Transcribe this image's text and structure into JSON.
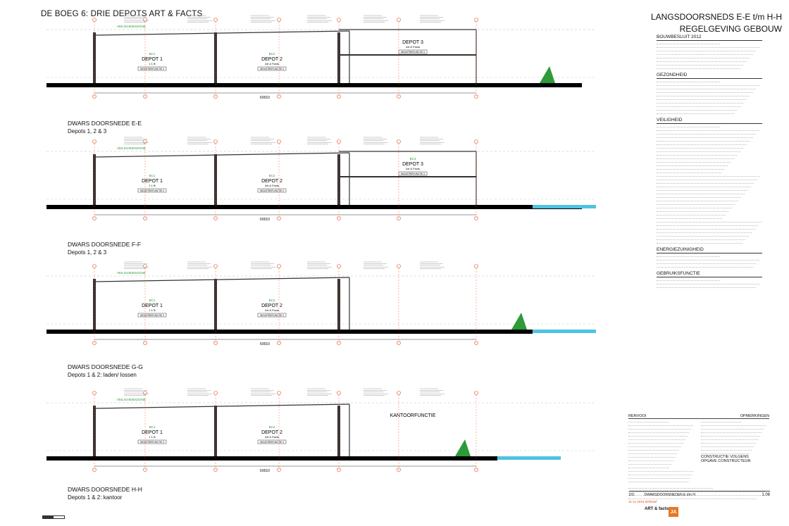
{
  "header": {
    "left_title": "DE BOEG 6: DRIE DEPOTS ART & FACTS",
    "right_title_1": "LANGSDOORSNEDS E-E t/m H-H",
    "right_title_2": "REGELGEVING GEBOUW"
  },
  "sections": [
    {
      "caption_1": "DWARS DOORSNEDE E-E",
      "caption_2": "Depots 1, 2 & 3",
      "zone": "VEILIGHEIDSZONE",
      "dim_total": "60010",
      "rooms": [
        {
          "title": "DEPOT 1",
          "code": "BC1",
          "sub": "1 1 B",
          "tag": "INDUSTRIEFUNCTIE 3"
        },
        {
          "title": "DEPOT 2",
          "code": "BC2",
          "sub": "Art & Facts",
          "tag": "INDUSTRIEFUNCTIE 3"
        },
        {
          "title": "DEPOT 3",
          "code": "",
          "sub": "Art & Facts",
          "tag": "INDUSTRIEFUNCTIE 3"
        }
      ]
    },
    {
      "caption_1": "DWARS DOORSNEDE F-F",
      "caption_2": "Depots 1, 2 & 3",
      "zone": "VEILIGHEIDSZONE",
      "dim_total": "60010",
      "rooms": [
        {
          "title": "DEPOT 1",
          "code": "BC1",
          "sub": "1 1 B",
          "tag": "INDUSTRIEFUNCTIE 3"
        },
        {
          "title": "DEPOT 2",
          "code": "BC2",
          "sub": "Art & Facts",
          "tag": "INDUSTRIEFUNCTIE 3"
        },
        {
          "title": "DEPOT 3",
          "code": "BC3",
          "sub": "Art & Facts",
          "tag": "INDUSTRIEFUNCTIE 3"
        }
      ]
    },
    {
      "caption_1": "DWARS DOORSNEDE G-G",
      "caption_2": "Depots 1 & 2: laden/ lossen",
      "zone": "VEILIGHEIDSZONE",
      "dim_total": "60010",
      "rooms": [
        {
          "title": "DEPOT 1",
          "code": "BC1",
          "sub": "1 1 B",
          "tag": "INDUSTRIEFUNCTIE 3"
        },
        {
          "title": "DEPOT 2",
          "code": "BC2",
          "sub": "Art & Facts",
          "tag": "INDUSTRIEFUNCTIE 3"
        }
      ]
    },
    {
      "caption_1": "DWARS DOORSNEDE H-H",
      "caption_2": "Depots 1 & 2: kantoor",
      "zone": "VEILIGHEIDSZONE",
      "dim_total": "60010",
      "rooms": [
        {
          "title": "DEPOT 1",
          "code": "BC1",
          "sub": "1 1 B",
          "tag": "INDUSTRIEFUNCTIE 3"
        },
        {
          "title": "DEPOT 2",
          "code": "BC2",
          "sub": "Art & Facts",
          "tag": "INDUSTRIEFUNCTIE 3"
        },
        {
          "title": "KANTOORFUNCTIE",
          "code": "",
          "sub": "",
          "tag": ""
        }
      ]
    }
  ],
  "side_panel": {
    "headings": [
      "BOUWBESLUIT 2012",
      "GEZONDHEID",
      "VEILIGHEID",
      "ENERGIEZUINIGHEID",
      "GEBRUIKSFUNCTIE"
    ]
  },
  "legend": {
    "heading_left": "RENVOOI",
    "heading_right": "OPMERKINGEN",
    "notes": [
      "CONSTRUCTIE VOLGENS",
      "OPGAVE CONSTRUCTEUR"
    ],
    "revisions": [
      "11-11-2016 definitief"
    ]
  },
  "title_block": {
    "code": "DO",
    "sheet": "DWARSDOORSNEDEN E t/m H",
    "number": "1.06",
    "logo_left": "ART & facts",
    "logo_right": "JA"
  },
  "colors": {
    "zone": "#2e9a3a",
    "dim": "#e0501c",
    "ground": "#000000",
    "water": "#4fc3e0"
  }
}
